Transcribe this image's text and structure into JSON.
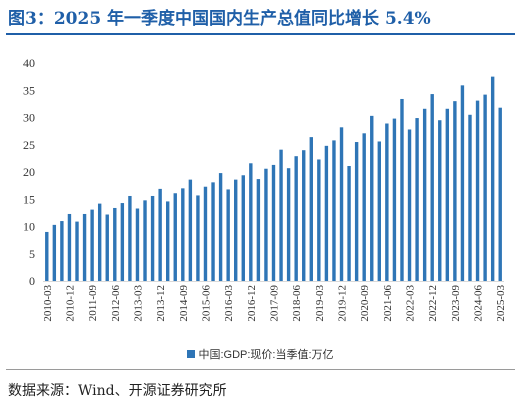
{
  "header": {
    "title": "图3：2025 年一季度中国国内生产总值同比增长 5.4%"
  },
  "footer": {
    "source": "数据来源：Wind、开源证券研究所"
  },
  "colors": {
    "bar": "#2e75b6",
    "title": "#1f5fa8",
    "axis": "#d9d9d9"
  },
  "chart_data": {
    "type": "bar",
    "title": "",
    "xlabel": "",
    "ylabel": "",
    "ylim": [
      0,
      40
    ],
    "y_ticks": [
      0,
      5,
      10,
      15,
      20,
      25,
      30,
      35,
      40
    ],
    "grid": false,
    "legend_position": "bottom",
    "x_tick_labels": [
      "2010-03",
      "2010-12",
      "2011-09",
      "2012-06",
      "2013-03",
      "2013-12",
      "2014-09",
      "2015-06",
      "2016-03",
      "2016-12",
      "2017-09",
      "2018-06",
      "2019-03",
      "2019-12",
      "2020-09",
      "2021-06",
      "2022-03",
      "2022-12",
      "2023-09",
      "2024-06",
      "2025-03"
    ],
    "categories": [
      "2010-03",
      "2010-06",
      "2010-09",
      "2010-12",
      "2011-03",
      "2011-06",
      "2011-09",
      "2011-12",
      "2012-03",
      "2012-06",
      "2012-09",
      "2012-12",
      "2013-03",
      "2013-06",
      "2013-09",
      "2013-12",
      "2014-03",
      "2014-06",
      "2014-09",
      "2014-12",
      "2015-03",
      "2015-06",
      "2015-09",
      "2015-12",
      "2016-03",
      "2016-06",
      "2016-09",
      "2016-12",
      "2017-03",
      "2017-06",
      "2017-09",
      "2017-12",
      "2018-03",
      "2018-06",
      "2018-09",
      "2018-12",
      "2019-03",
      "2019-06",
      "2019-09",
      "2019-12",
      "2020-03",
      "2020-06",
      "2020-09",
      "2020-12",
      "2021-03",
      "2021-06",
      "2021-09",
      "2021-12",
      "2022-03",
      "2022-06",
      "2022-09",
      "2022-12",
      "2023-03",
      "2023-06",
      "2023-09",
      "2023-12",
      "2024-03",
      "2024-06",
      "2024-09",
      "2024-12",
      "2025-03"
    ],
    "series": [
      {
        "name": "中国:GDP:现价:当季值:万亿",
        "values": [
          9.0,
          10.3,
          11.0,
          12.3,
          10.9,
          12.3,
          13.1,
          14.2,
          12.2,
          13.4,
          14.3,
          15.6,
          13.3,
          14.8,
          15.6,
          16.9,
          14.6,
          16.1,
          17.0,
          18.6,
          15.7,
          17.3,
          18.1,
          19.8,
          16.8,
          18.6,
          19.4,
          21.6,
          18.7,
          20.6,
          21.3,
          24.1,
          20.7,
          22.9,
          24.0,
          26.4,
          22.3,
          24.8,
          25.8,
          28.2,
          21.1,
          25.5,
          27.1,
          30.3,
          25.6,
          28.9,
          29.8,
          33.4,
          27.8,
          29.9,
          31.6,
          34.3,
          29.5,
          31.6,
          33.0,
          35.9,
          30.5,
          33.1,
          34.2,
          37.5,
          31.8
        ]
      }
    ]
  }
}
